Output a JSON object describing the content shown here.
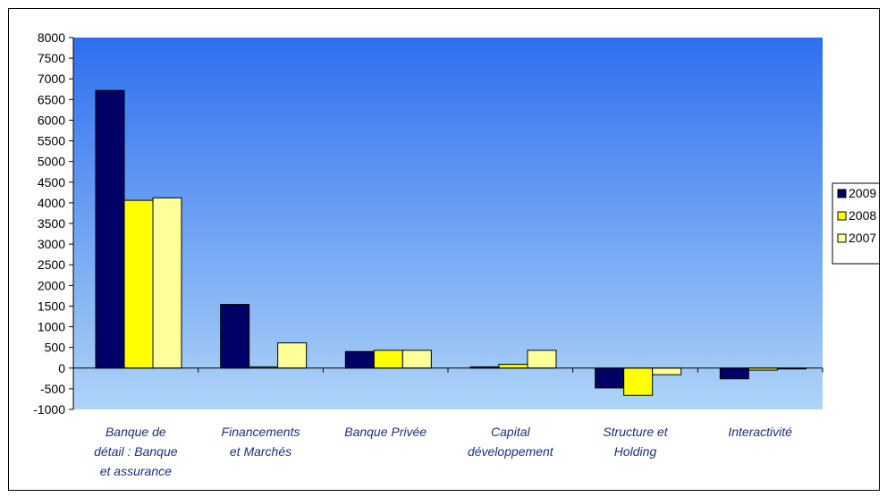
{
  "colors": {
    "plot_top": "#2e6ff0",
    "plot_bottom": "#aed4f7",
    "series": [
      "#000066",
      "#ffff00",
      "#ffff99"
    ],
    "category_text": "#1f2f7a"
  },
  "chart_data": {
    "type": "bar",
    "title": "",
    "xlabel": "",
    "ylabel": "",
    "ylim": [
      -1000,
      8000
    ],
    "ytick_step": 500,
    "grid": false,
    "legend_position": "right",
    "categories": [
      [
        "Banque de",
        "détail : Banque",
        "et assurance"
      ],
      [
        "Financements",
        "et Marchés"
      ],
      [
        "Banque Privée"
      ],
      [
        "Capital",
        "développement"
      ],
      [
        "Structure et",
        "Holding"
      ],
      [
        "Interactivité"
      ]
    ],
    "series": [
      {
        "name": "2009",
        "values": [
          6720,
          1540,
          400,
          30,
          -480,
          -260
        ]
      },
      {
        "name": "2008",
        "values": [
          4060,
          30,
          430,
          90,
          -660,
          -50
        ]
      },
      {
        "name": "2007",
        "values": [
          4120,
          610,
          430,
          430,
          -160,
          -20
        ]
      }
    ]
  }
}
